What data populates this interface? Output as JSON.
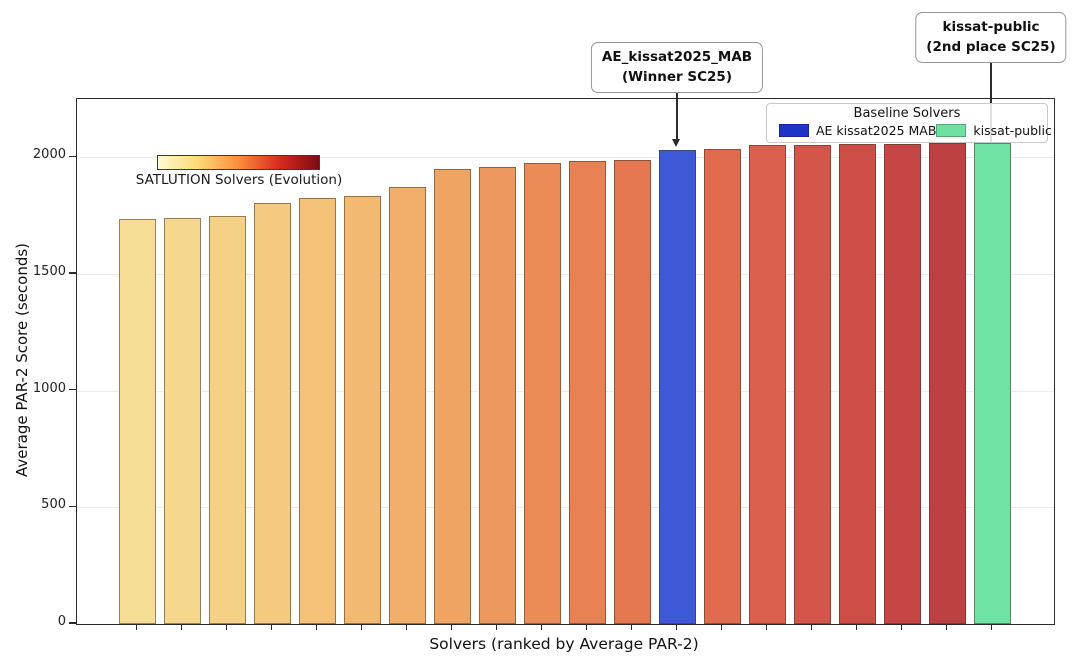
{
  "chart_data": {
    "type": "bar",
    "xlabel": "Solvers (ranked by Average PAR-2)",
    "ylabel": "Average PAR-2 Score (seconds)",
    "ylim": [
      0,
      2250
    ],
    "yticks": [
      0,
      500,
      1000,
      1500,
      2000
    ],
    "grid": "horizontal-light",
    "categories_note": "20 solvers ranked ascending by Average PAR-2; no per-bar tick labels shown",
    "bars": [
      {
        "rank": 1,
        "group": "SATLUTION Solvers (Evolution)",
        "value": 1737,
        "color": "#f6dd96"
      },
      {
        "rank": 2,
        "group": "SATLUTION Solvers (Evolution)",
        "value": 1742,
        "color": "#f5d78e"
      },
      {
        "rank": 3,
        "group": "SATLUTION Solvers (Evolution)",
        "value": 1750,
        "color": "#f5d187"
      },
      {
        "rank": 4,
        "group": "SATLUTION Solvers (Evolution)",
        "value": 1806,
        "color": "#f4ca80"
      },
      {
        "rank": 5,
        "group": "SATLUTION Solvers (Evolution)",
        "value": 1826,
        "color": "#f4c179"
      },
      {
        "rank": 6,
        "group": "SATLUTION Solvers (Evolution)",
        "value": 1836,
        "color": "#f3b872"
      },
      {
        "rank": 7,
        "group": "SATLUTION Solvers (Evolution)",
        "value": 1874,
        "color": "#f1af6b"
      },
      {
        "rank": 8,
        "group": "SATLUTION Solvers (Evolution)",
        "value": 1952,
        "color": "#efa464"
      },
      {
        "rank": 9,
        "group": "SATLUTION Solvers (Evolution)",
        "value": 1957,
        "color": "#ed985e"
      },
      {
        "rank": 10,
        "group": "SATLUTION Solvers (Evolution)",
        "value": 1976,
        "color": "#ea8b58"
      },
      {
        "rank": 11,
        "group": "SATLUTION Solvers (Evolution)",
        "value": 1983,
        "color": "#e88254"
      },
      {
        "rank": 12,
        "group": "SATLUTION Solvers (Evolution)",
        "value": 1990,
        "color": "#e57751"
      },
      {
        "rank": 13,
        "group": "AE kissat2025 MAB",
        "value": 2032,
        "color": "#3d59d8"
      },
      {
        "rank": 14,
        "group": "SATLUTION Solvers (Evolution)",
        "value": 2037,
        "color": "#e06c4f"
      },
      {
        "rank": 15,
        "group": "SATLUTION Solvers (Evolution)",
        "value": 2053,
        "color": "#db604d"
      },
      {
        "rank": 16,
        "group": "SATLUTION Solvers (Evolution)",
        "value": 2055,
        "color": "#d4564a"
      },
      {
        "rank": 17,
        "group": "SATLUTION Solvers (Evolution)",
        "value": 2057,
        "color": "#cd4d47"
      },
      {
        "rank": 18,
        "group": "SATLUTION Solvers (Evolution)",
        "value": 2058,
        "color": "#c64545"
      },
      {
        "rank": 19,
        "group": "SATLUTION Solvers (Evolution)",
        "value": 2060,
        "color": "#bd4043"
      },
      {
        "rank": 20,
        "group": "kissat-public",
        "value": 2061,
        "color": "#70e2a3"
      }
    ],
    "legend": {
      "title": "Baseline Solvers",
      "position": "upper-right",
      "items": [
        {
          "label": "AE kissat2025 MAB",
          "color": "#1f33c9"
        },
        {
          "label": "kissat-public",
          "color": "#6fe0a0"
        }
      ]
    },
    "colorbar": {
      "label": "SATLUTION Solvers (Evolution)",
      "gradient": [
        "#fffbd0",
        "#fed976",
        "#fd8d3c",
        "#d92b20",
        "#7f0a12"
      ]
    },
    "annotations": [
      {
        "line1": "AE_kissat2025_MAB",
        "line2": "(Winner SC25)",
        "target_rank": 13
      },
      {
        "line1": "kissat-public",
        "line2": "(2nd place SC25)",
        "target_rank": 20
      }
    ]
  }
}
